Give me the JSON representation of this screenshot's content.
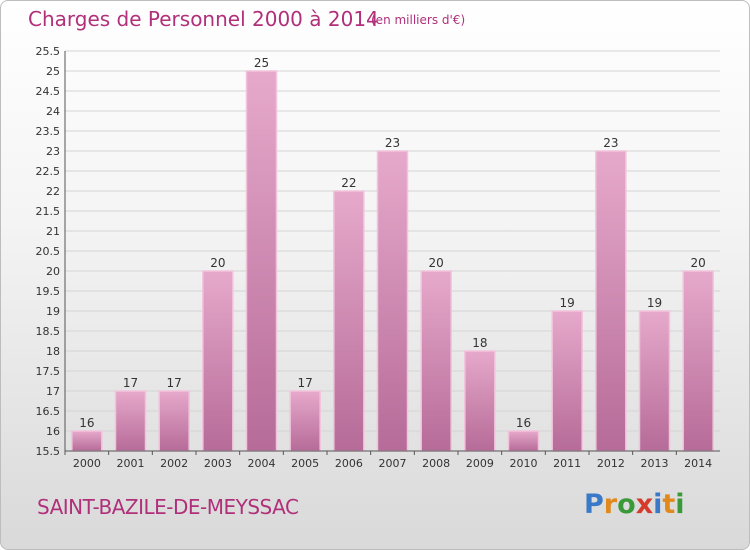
{
  "header": {
    "title": "Charges de Personnel 2000 à 2014",
    "subtitle": "(en milliers d'€)"
  },
  "footer": {
    "town": "SAINT-BAZILE-DE-MEYSSAC",
    "logo_letters": [
      "P",
      "r",
      "o",
      "x",
      "i",
      "t",
      "i"
    ],
    "logo_colors": [
      "#3a78c8",
      "#e08a1e",
      "#3a9a3a",
      "#d63a2a",
      "#3a78c8",
      "#e08a1e",
      "#3a9a3a"
    ]
  },
  "chart_data": {
    "type": "bar",
    "title": "Charges de Personnel 2000 à 2014",
    "subtitle": "(en milliers d'€)",
    "categories": [
      "2000",
      "2001",
      "2002",
      "2003",
      "2004",
      "2005",
      "2006",
      "2007",
      "2008",
      "2009",
      "2010",
      "2011",
      "2012",
      "2013",
      "2014"
    ],
    "values": [
      16,
      17,
      17,
      20,
      25,
      17,
      22,
      23,
      20,
      18,
      16,
      19,
      23,
      19,
      20
    ],
    "data_labels": [
      "16",
      "17",
      "17",
      "20",
      "25",
      "17",
      "22",
      "23",
      "20",
      "18",
      "16",
      "19",
      "23",
      "19",
      "20"
    ],
    "ylim": [
      15.5,
      25.5
    ],
    "yticks": [
      "15.5",
      "16",
      "16.5",
      "17",
      "17.5",
      "18",
      "18.5",
      "19",
      "19.5",
      "20",
      "20.5",
      "21",
      "21.5",
      "22",
      "22.5",
      "23",
      "23.5",
      "24",
      "24.5",
      "25",
      "25.5"
    ],
    "grid": true,
    "bar_color": "#d98bb8",
    "bar_edge_color": "#f2c4dc"
  }
}
